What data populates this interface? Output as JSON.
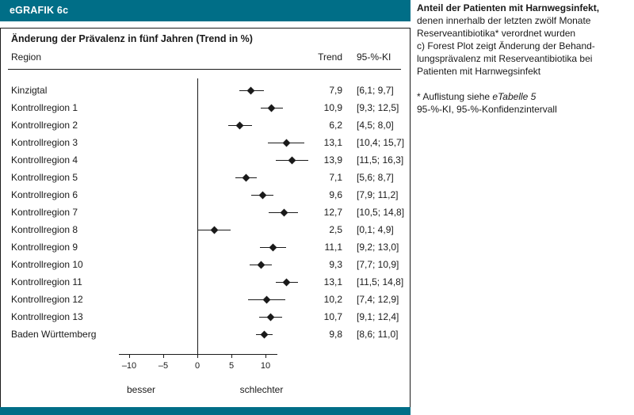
{
  "header": {
    "label": "eGRAFIK 6c"
  },
  "chart_data": {
    "type": "forest",
    "title": "Änderung der Prävalenz in fünf Jahren (Trend in %)",
    "columns": {
      "region": "Region",
      "trend": "Trend",
      "ci": "95-%-KI"
    },
    "x_ticks": [
      -10,
      -5,
      0,
      5,
      10
    ],
    "x_range": [
      -11.5,
      11.6
    ],
    "ref_line": 0,
    "axis_left_label": "besser",
    "axis_right_label": "schlechter",
    "rows": [
      {
        "label": "Kinzigtal",
        "trend": 7.9,
        "trend_text": "7,9",
        "ci_low": 6.1,
        "ci_high": 9.7,
        "ci_text": "[6,1; 9,7]"
      },
      {
        "label": "Kontrollregion 1",
        "trend": 10.9,
        "trend_text": "10,9",
        "ci_low": 9.3,
        "ci_high": 12.5,
        "ci_text": "[9,3; 12,5]"
      },
      {
        "label": "Kontrollregion 2",
        "trend": 6.2,
        "trend_text": "6,2",
        "ci_low": 4.5,
        "ci_high": 8.0,
        "ci_text": "[4,5; 8,0]"
      },
      {
        "label": "Kontrollregion 3",
        "trend": 13.1,
        "trend_text": "13,1",
        "ci_low": 10.4,
        "ci_high": 15.7,
        "ci_text": "[10,4; 15,7]"
      },
      {
        "label": "Kontrollregion 4",
        "trend": 13.9,
        "trend_text": "13,9",
        "ci_low": 11.5,
        "ci_high": 16.3,
        "ci_text": "[11,5; 16,3]"
      },
      {
        "label": "Kontrollregion 5",
        "trend": 7.1,
        "trend_text": "7,1",
        "ci_low": 5.6,
        "ci_high": 8.7,
        "ci_text": "[5,6; 8,7]"
      },
      {
        "label": "Kontrollregion 6",
        "trend": 9.6,
        "trend_text": "9,6",
        "ci_low": 7.9,
        "ci_high": 11.2,
        "ci_text": "[7,9; 11,2]"
      },
      {
        "label": "Kontrollregion 7",
        "trend": 12.7,
        "trend_text": "12,7",
        "ci_low": 10.5,
        "ci_high": 14.8,
        "ci_text": "[10,5; 14,8]"
      },
      {
        "label": "Kontrollregion 8",
        "trend": 2.5,
        "trend_text": "2,5",
        "ci_low": 0.1,
        "ci_high": 4.9,
        "ci_text": "[0,1; 4,9]"
      },
      {
        "label": "Kontrollregion 9",
        "trend": 11.1,
        "trend_text": "11,1",
        "ci_low": 9.2,
        "ci_high": 13.0,
        "ci_text": "[9,2; 13,0]"
      },
      {
        "label": "Kontrollregion 10",
        "trend": 9.3,
        "trend_text": "9,3",
        "ci_low": 7.7,
        "ci_high": 10.9,
        "ci_text": "[7,7; 10,9]"
      },
      {
        "label": "Kontrollregion 11",
        "trend": 13.1,
        "trend_text": "13,1",
        "ci_low": 11.5,
        "ci_high": 14.8,
        "ci_text": "[11,5; 14,8]"
      },
      {
        "label": "Kontrollregion 12",
        "trend": 10.2,
        "trend_text": "10,2",
        "ci_low": 7.4,
        "ci_high": 12.9,
        "ci_text": "[7,4; 12,9]"
      },
      {
        "label": "Kontrollregion 13",
        "trend": 10.7,
        "trend_text": "10,7",
        "ci_low": 9.1,
        "ci_high": 12.4,
        "ci_text": "[9,1; 12,4]"
      },
      {
        "label": "Baden Württemberg",
        "trend": 9.8,
        "trend_text": "9,8",
        "ci_low": 8.6,
        "ci_high": 11.0,
        "ci_text": "[8,6; 11,0]"
      }
    ]
  },
  "sidebar": {
    "title": "Anteil der Patienten mit Harnwegsinfekt,",
    "lines": [
      "denen innerhalb der letzten zwölf Monate",
      "Reserveantibiotika* verordnet wurden",
      "c) Forest Plot zeigt Änderung der Behand-",
      "lungsprävalenz mit Reserveantibiotika bei",
      "Patienten mit Harnwegsinfekt"
    ],
    "footnote_prefix": "* Auflistung siehe ",
    "footnote_italic": "eTabelle 5",
    "footnote2": "95-%-KI, 95-%-Konfidenzintervall"
  },
  "colors": {
    "accent": "#006e87",
    "ink": "#1a1a1a"
  }
}
